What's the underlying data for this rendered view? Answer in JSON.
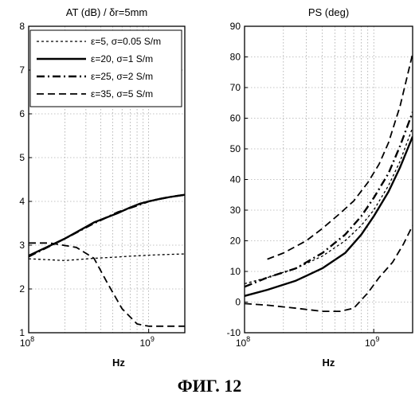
{
  "figure": {
    "caption": "ФИГ. 12"
  },
  "chart_data": [
    {
      "type": "line",
      "title": "AT (dB) / δr=5mm",
      "xlabel": "Hz",
      "ylabel": "",
      "xscale": "log",
      "xlim": [
        100000000,
        2000000000
      ],
      "ylim": [
        1,
        8
      ],
      "yticks": [
        1,
        2,
        3,
        4,
        5,
        6,
        7,
        8
      ],
      "xticks": [
        {
          "value": 100000000,
          "base": "10",
          "exp": "8"
        },
        {
          "value": 1000000000,
          "base": "10",
          "exp": "9"
        }
      ],
      "grid": true,
      "legend_position": "top",
      "series": [
        {
          "name": "ε=5, σ=0.05 S/m",
          "style": "dotted",
          "x": [
            100000000,
            200000000,
            350000000,
            550000000,
            700000000,
            850000000,
            1000000000,
            1200000000,
            1500000000,
            2000000000
          ],
          "y": [
            2.69,
            2.65,
            2.7,
            2.73,
            2.75,
            2.76,
            2.77,
            2.78,
            2.79,
            2.8
          ]
        },
        {
          "name": "ε=20, σ=1 S/m",
          "style": "solid",
          "x": [
            100000000,
            200000000,
            350000000,
            550000000,
            700000000,
            850000000,
            1000000000,
            1200000000,
            1500000000,
            2000000000
          ],
          "y": [
            2.76,
            3.15,
            3.52,
            3.73,
            3.86,
            3.95,
            4.0,
            4.05,
            4.1,
            4.15
          ]
        },
        {
          "name": "ε=25, σ=2 S/m",
          "style": "dashdot",
          "x": [
            100000000,
            200000000,
            350000000,
            550000000,
            700000000,
            850000000,
            1000000000,
            1200000000,
            1500000000,
            2000000000
          ],
          "y": [
            2.74,
            3.15,
            3.5,
            3.75,
            3.85,
            3.93,
            4.0,
            4.05,
            4.1,
            4.15
          ]
        },
        {
          "name": "ε=35, σ=5 S/m",
          "style": "dashed",
          "x": [
            100000000,
            150000000,
            250000000,
            350000000,
            450000000,
            600000000,
            800000000,
            1000000000,
            1300000000,
            1600000000,
            2000000000
          ],
          "y": [
            3.05,
            3.05,
            2.95,
            2.7,
            2.15,
            1.55,
            1.2,
            1.15,
            1.15,
            1.15,
            1.15
          ]
        }
      ]
    },
    {
      "type": "line",
      "title": "PS (deg)",
      "xlabel": "Hz",
      "ylabel": "",
      "xscale": "log",
      "xlim": [
        100000000,
        2000000000
      ],
      "ylim": [
        -10,
        90
      ],
      "yticks": [
        -10,
        0,
        10,
        20,
        30,
        40,
        50,
        60,
        70,
        80,
        90
      ],
      "xticks": [
        {
          "value": 100000000,
          "base": "10",
          "exp": "8"
        },
        {
          "value": 1000000000,
          "base": "10",
          "exp": "9"
        }
      ],
      "grid": true,
      "series": [
        {
          "name": "ε=5, σ=0.05 S/m",
          "style": "dotted",
          "x": [
            100000000,
            150000000,
            250000000,
            400000000,
            600000000,
            800000000,
            1000000000,
            1300000000,
            1600000000,
            2000000000
          ],
          "y": [
            6,
            8,
            11,
            15,
            20,
            25,
            30,
            38,
            46,
            57
          ]
        },
        {
          "name": "ε=20, σ=1 S/m",
          "style": "solid",
          "x": [
            100000000,
            150000000,
            250000000,
            400000000,
            600000000,
            800000000,
            1000000000,
            1300000000,
            1600000000,
            2000000000
          ],
          "y": [
            2,
            4,
            7,
            11,
            16,
            22,
            28,
            36,
            44,
            54
          ]
        },
        {
          "name": "ε=25, σ=2 S/m",
          "style": "dashdot",
          "x": [
            100000000,
            150000000,
            250000000,
            400000000,
            600000000,
            800000000,
            1000000000,
            1300000000,
            1600000000,
            2000000000
          ],
          "y": [
            5,
            8,
            11,
            16,
            22,
            28,
            34,
            42,
            51,
            62
          ]
        },
        {
          "name": "ε=35, σ=5 S/m",
          "style": "dashed",
          "x": [
            100000000,
            150000000,
            250000000,
            400000000,
            550000000,
            700000000,
            900000000,
            1100000000,
            1400000000,
            1700000000,
            2000000000
          ],
          "y": [
            -0.5,
            -1,
            -2,
            -3,
            -3,
            -2,
            3,
            8,
            13,
            19,
            25
          ]
        },
        {
          "name": "",
          "style": "dashed",
          "x": [
            150000000,
            200000000,
            300000000,
            400000000,
            550000000,
            700000000,
            900000000,
            1100000000,
            1300000000,
            1600000000,
            2000000000
          ],
          "y": [
            14,
            16,
            20,
            24,
            29,
            33,
            39,
            45,
            52,
            64,
            81
          ]
        }
      ]
    }
  ]
}
